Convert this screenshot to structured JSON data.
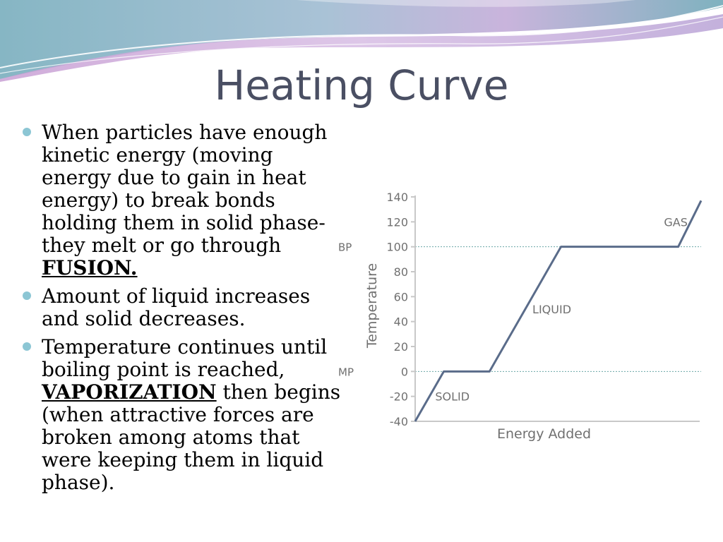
{
  "slide": {
    "title": "Heating Curve",
    "bullets": [
      {
        "before": "When particles have enough kinetic energy (moving energy due to gain in heat energy) to break bonds holding them in solid phase- they melt or go through ",
        "emphasis": "FUSION.",
        "after": ""
      },
      {
        "before": "Amount of liquid increases and solid decreases.",
        "emphasis": "",
        "after": ""
      },
      {
        "before": "Temperature continues until boiling point is reached, ",
        "emphasis": "VAPORIZATION",
        "after": " then begins (when attractive forces are broken among atoms that were keeping them in liquid phase)."
      }
    ]
  },
  "chart_data": {
    "type": "line",
    "title": "",
    "xlabel": "Energy Added",
    "ylabel": "Temperature",
    "ylim": [
      -40,
      140
    ],
    "yticks": [
      -40,
      -20,
      0,
      20,
      40,
      60,
      80,
      100,
      120,
      140
    ],
    "xlim": [
      0,
      100
    ],
    "series": [
      {
        "x": [
          0,
          10,
          26,
          51,
          92,
          100
        ],
        "y": [
          -40,
          0,
          0,
          100,
          100,
          137
        ]
      }
    ],
    "reference_lines": [
      {
        "label": "BP",
        "y": 100
      },
      {
        "label": "MP",
        "y": 0
      }
    ],
    "annotations": [
      {
        "text": "SOLID",
        "x": 7,
        "y": -20
      },
      {
        "text": "LIQUID",
        "x": 41,
        "y": 50
      },
      {
        "text": "GAS",
        "x": 87,
        "y": 120
      }
    ],
    "colors": {
      "line": "#5a6c8a",
      "axis": "#c8c8c8",
      "reference": "#6aa6a6",
      "text": "#707070"
    },
    "grid": false
  }
}
